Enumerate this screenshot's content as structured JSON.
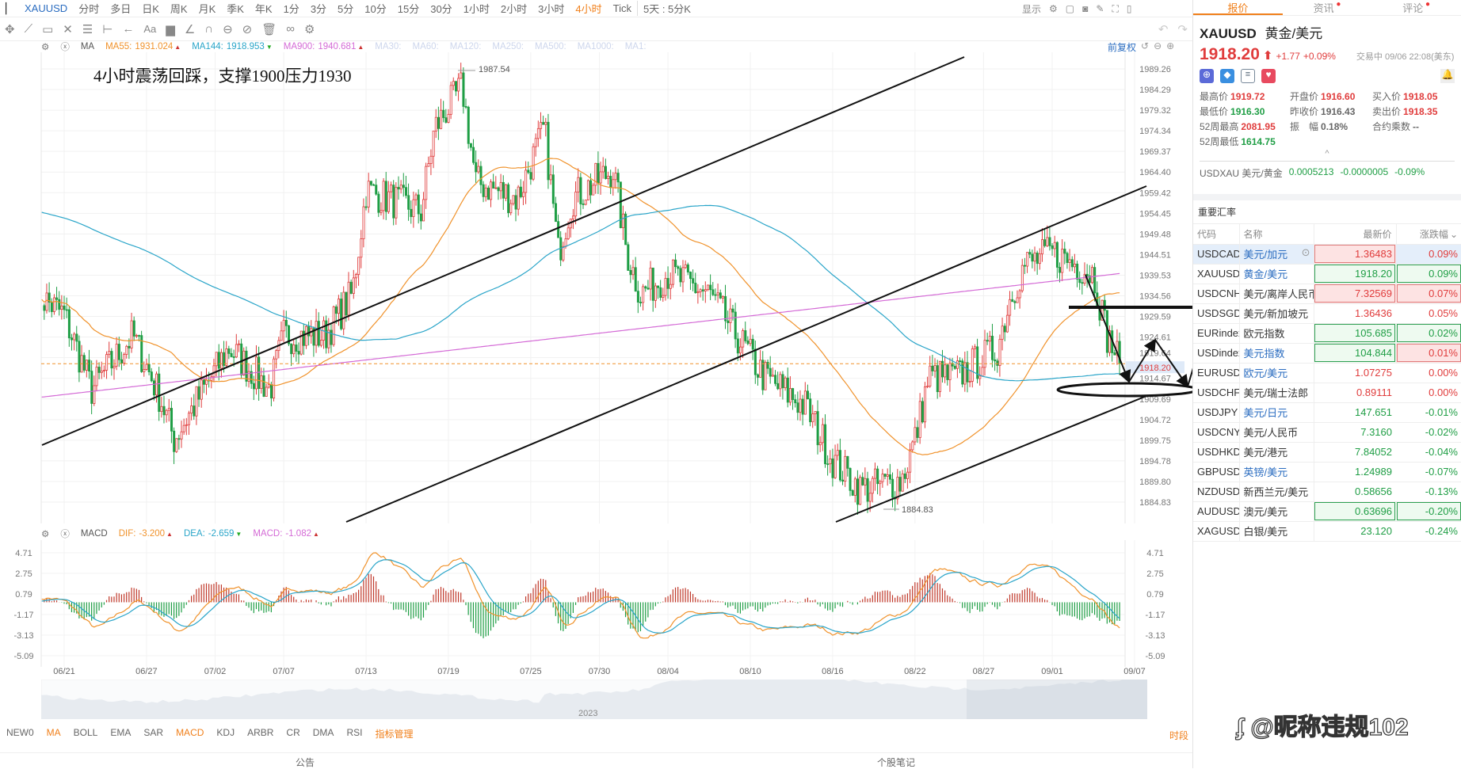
{
  "topbar": {
    "symbol": "XAUUSD",
    "periods": [
      "分时",
      "多日",
      "日K",
      "周K",
      "月K",
      "季K",
      "年K",
      "1分",
      "3分",
      "5分",
      "10分",
      "15分",
      "30分",
      "1小时",
      "2小时",
      "3小时",
      "4小时",
      "Tick"
    ],
    "active_period": "4小时",
    "range": "5天 : 5分K",
    "display": "显示"
  },
  "ma_header": {
    "name": "MA",
    "items": [
      {
        "label": "MA55:",
        "value": "1931.024",
        "color": "#f0922b",
        "trend": "up"
      },
      {
        "label": "MA144:",
        "value": "1918.953",
        "color": "#2aa5c9",
        "trend": "down"
      },
      {
        "label": "MA900:",
        "value": "1940.681",
        "color": "#d46ad6",
        "trend": "up"
      }
    ],
    "inactive": [
      "MA30:",
      "MA60:",
      "MA120:",
      "MA250:",
      "MA500:",
      "MA1000:",
      "MA1:"
    ],
    "adjust": "前复权"
  },
  "annotation": "4小时震荡回踩，支撑1900压力1930",
  "high_label": "1987.54",
  "low_label": "1884.83",
  "price_axis": [
    "1989.26",
    "1984.29",
    "1979.32",
    "1974.34",
    "1969.37",
    "1964.40",
    "1959.42",
    "1954.45",
    "1949.48",
    "1944.51",
    "1939.53",
    "1934.56",
    "1929.59",
    "1924.61",
    "1919.64",
    "1914.67",
    "1909.69",
    "1904.72",
    "1899.75",
    "1894.78",
    "1889.80",
    "1884.83"
  ],
  "current_price": "1918.20",
  "price_path": [
    [
      "06/19",
      1935
    ],
    [
      "06/21",
      1930
    ],
    [
      "06/23",
      1912
    ],
    [
      "06/26",
      1925
    ],
    [
      "06/28",
      1910
    ],
    [
      "06/29",
      1900
    ],
    [
      "07/03",
      1922
    ],
    [
      "07/06",
      1912
    ],
    [
      "07/07",
      1925
    ],
    [
      "07/10",
      1925
    ],
    [
      "07/12",
      1935
    ],
    [
      "07/13",
      1960
    ],
    [
      "07/17",
      1955
    ],
    [
      "07/18",
      1975
    ],
    [
      "07/20",
      1985
    ],
    [
      "07/21",
      1962
    ],
    [
      "07/24",
      1958
    ],
    [
      "07/26",
      1975
    ],
    [
      "07/27",
      1945
    ],
    [
      "07/28",
      1958
    ],
    [
      "07/31",
      1965
    ],
    [
      "08/01",
      1945
    ],
    [
      "08/02",
      1935
    ],
    [
      "08/04",
      1940
    ],
    [
      "08/07",
      1935
    ],
    [
      "08/09",
      1925
    ],
    [
      "08/11",
      1915
    ],
    [
      "08/14",
      1908
    ],
    [
      "08/16",
      1895
    ],
    [
      "08/18",
      1888
    ],
    [
      "08/21",
      1890
    ],
    [
      "08/22",
      1900
    ],
    [
      "08/23",
      1915
    ],
    [
      "08/25",
      1915
    ],
    [
      "08/28",
      1922
    ],
    [
      "08/29",
      1935
    ],
    [
      "08/30",
      1942
    ],
    [
      "09/01",
      1945
    ],
    [
      "09/04",
      1940
    ],
    [
      "09/05",
      1925
    ],
    [
      "09/06",
      1918
    ]
  ],
  "macd_header": {
    "name": "MACD",
    "dif": {
      "label": "DIF:",
      "value": "-3.200",
      "color": "#f0922b"
    },
    "dea": {
      "label": "DEA:",
      "value": "-2.659",
      "color": "#2aa5c9"
    },
    "macd": {
      "label": "MACD:",
      "value": "-1.082",
      "color": "#d46ad6"
    }
  },
  "macd_axis": [
    "4.71",
    "2.75",
    "0.79",
    "-1.17",
    "-3.13",
    "-5.09"
  ],
  "date_axis": [
    "06/21",
    "06/27",
    "07/02",
    "07/07",
    "07/13",
    "07/19",
    "07/25",
    "07/30",
    "08/04",
    "08/10",
    "08/16",
    "08/22",
    "08/27",
    "09/01",
    "09/07"
  ],
  "navigator_year": "2023",
  "indicators": [
    "NEW0",
    "MA",
    "BOLL",
    "EMA",
    "SAR",
    "MACD",
    "KDJ",
    "ARBR",
    "CR",
    "DMA",
    "RSI",
    "指标管理"
  ],
  "indicators_active": [
    "MA",
    "MACD",
    "指标管理"
  ],
  "period_btn": "时段",
  "bottom": {
    "left": "公告",
    "right": "个股笔记"
  },
  "colors": {
    "up": "#e03c3c",
    "down": "#1f9e45",
    "accent": "#f07f1a"
  },
  "right": {
    "tabs": [
      {
        "label": "报价",
        "active": true
      },
      {
        "label": "资讯",
        "dot": true
      },
      {
        "label": "评论",
        "dot": true
      }
    ],
    "title": "XAUUSD",
    "title_name": "黄金/美元",
    "price": "1918.20",
    "change": "+1.77",
    "change_pct": "+0.09%",
    "status": "交易中 09/06 22:08(美东)",
    "stats": [
      [
        {
          "k": "最高价",
          "v": "1919.72",
          "c": "red"
        },
        {
          "k": "开盘价",
          "v": "1916.60",
          "c": "red"
        },
        {
          "k": "买入价",
          "v": "1918.05",
          "c": "red"
        }
      ],
      [
        {
          "k": "最低价",
          "v": "1916.30",
          "c": "green"
        },
        {
          "k": "昨收价",
          "v": "1916.43",
          "c": ""
        },
        {
          "k": "卖出价",
          "v": "1918.35",
          "c": "red"
        }
      ],
      [
        {
          "k": "52周最高",
          "v": "2081.95",
          "c": "red"
        },
        {
          "k": "振　幅",
          "v": "0.18%",
          "c": ""
        },
        {
          "k": "合约乘数",
          "v": "--",
          "c": ""
        }
      ],
      [
        {
          "k": "52周最低",
          "v": "1614.75",
          "c": "green"
        }
      ]
    ],
    "inverse": {
      "code": "USDXAU",
      "name": "美元/黄金",
      "price": "0.0005213",
      "change": "-0.0000005",
      "pct": "-0.09%"
    },
    "section": "重要汇率",
    "columns": [
      "代码",
      "名称",
      "最新价",
      "涨跌幅"
    ],
    "rows": [
      {
        "code": "USDCAD",
        "name": "美元/加元",
        "link": true,
        "price": "1.36483",
        "pct": "0.09%",
        "c": "red",
        "pbox": "r",
        "cbox": "",
        "selected": true
      },
      {
        "code": "XAUUSD",
        "name": "黄金/美元",
        "link": true,
        "price": "1918.20",
        "pct": "0.09%",
        "c": "green",
        "pbox": "g",
        "cbox": "g"
      },
      {
        "code": "USDCNH",
        "name": "美元/离岸人民币",
        "link": false,
        "price": "7.32569",
        "pct": "0.07%",
        "c": "red",
        "pbox": "r",
        "cbox": "r"
      },
      {
        "code": "USDSGD",
        "name": "美元/新加坡元",
        "link": false,
        "price": "1.36436",
        "pct": "0.05%",
        "c": "red",
        "pbox": "",
        "cbox": ""
      },
      {
        "code": "EURindex",
        "name": "欧元指数",
        "link": false,
        "price": "105.685",
        "pct": "0.02%",
        "c": "green",
        "pbox": "g",
        "cbox": "g"
      },
      {
        "code": "USDindex",
        "name": "美元指数",
        "link": true,
        "price": "104.844",
        "pct": "0.01%",
        "c": "green",
        "pbox": "g",
        "cbox": "r",
        "pctc": "red"
      },
      {
        "code": "EURUSD",
        "name": "欧元/美元",
        "link": true,
        "price": "1.07275",
        "pct": "0.00%",
        "c": "red",
        "pbox": "",
        "cbox": ""
      },
      {
        "code": "USDCHF",
        "name": "美元/瑞士法郎",
        "link": false,
        "price": "0.89111",
        "pct": "0.00%",
        "c": "red",
        "pbox": "",
        "cbox": ""
      },
      {
        "code": "USDJPY",
        "name": "美元/日元",
        "link": true,
        "price": "147.651",
        "pct": "-0.01%",
        "c": "green",
        "pbox": "",
        "cbox": ""
      },
      {
        "code": "USDCNY",
        "name": "美元/人民币",
        "link": false,
        "price": "7.3160",
        "pct": "-0.02%",
        "c": "green",
        "pbox": "",
        "cbox": ""
      },
      {
        "code": "USDHKD",
        "name": "美元/港元",
        "link": false,
        "price": "7.84052",
        "pct": "-0.04%",
        "c": "green",
        "pbox": "",
        "cbox": ""
      },
      {
        "code": "GBPUSD",
        "name": "英镑/美元",
        "link": true,
        "price": "1.24989",
        "pct": "-0.07%",
        "c": "green",
        "pbox": "",
        "cbox": ""
      },
      {
        "code": "NZDUSD",
        "name": "新西兰元/美元",
        "link": false,
        "price": "0.58656",
        "pct": "-0.13%",
        "c": "green",
        "pbox": "",
        "cbox": ""
      },
      {
        "code": "AUDUSD",
        "name": "澳元/美元",
        "link": false,
        "price": "0.63696",
        "pct": "-0.20%",
        "c": "green",
        "pbox": "g",
        "cbox": "g"
      },
      {
        "code": "XAGUSD",
        "name": "白银/美元",
        "link": false,
        "price": "23.120",
        "pct": "-0.24%",
        "c": "green",
        "pbox": "",
        "cbox": ""
      }
    ]
  },
  "watermark": "@昵称违规102"
}
